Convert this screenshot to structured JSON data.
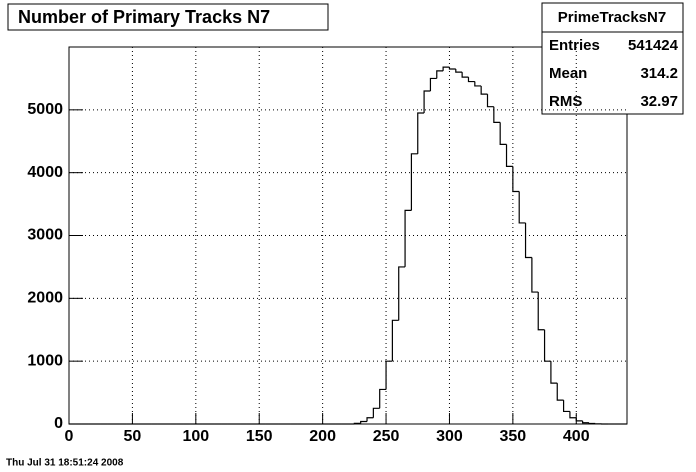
{
  "chart_data": {
    "type": "histogram",
    "title": "Number of Primary Tracks N7",
    "bins": [
      0,
      5,
      10,
      15,
      20,
      25,
      30,
      35,
      40,
      45,
      50,
      55,
      60,
      65,
      70,
      75,
      80,
      85,
      90,
      95,
      100,
      105,
      110,
      115,
      120,
      125,
      130,
      135,
      140,
      145,
      150,
      155,
      160,
      165,
      170,
      175,
      180,
      185,
      190,
      195,
      200,
      205,
      210,
      215,
      220,
      225,
      230,
      235,
      240,
      245,
      250,
      255,
      260,
      265,
      270,
      275,
      280,
      285,
      290,
      295,
      300,
      305,
      310,
      315,
      320,
      325,
      330,
      335,
      340,
      345,
      350,
      355,
      360,
      365,
      370,
      375,
      380,
      385,
      390,
      395,
      400,
      405,
      410,
      415,
      420,
      425,
      430,
      435,
      440
    ],
    "values": [
      0,
      0,
      0,
      0,
      0,
      0,
      0,
      0,
      0,
      0,
      0,
      0,
      0,
      0,
      0,
      0,
      0,
      0,
      0,
      0,
      0,
      0,
      0,
      0,
      0,
      0,
      0,
      0,
      0,
      0,
      0,
      0,
      0,
      0,
      0,
      0,
      0,
      0,
      0,
      0,
      0,
      0,
      0,
      0,
      0,
      10,
      40,
      100,
      250,
      550,
      1000,
      1650,
      2500,
      3400,
      4300,
      4950,
      5300,
      5500,
      5620,
      5680,
      5650,
      5600,
      5520,
      5450,
      5380,
      5250,
      5050,
      4800,
      4450,
      4100,
      3700,
      3200,
      2650,
      2100,
      1500,
      1000,
      650,
      380,
      200,
      100,
      50,
      20,
      8,
      2,
      0,
      0,
      0,
      0
    ],
    "color": "#000000",
    "xlim": [
      0,
      440
    ],
    "ylim": [
      0,
      6000
    ],
    "xticks": [
      0,
      50,
      100,
      150,
      200,
      250,
      300,
      350,
      400
    ],
    "yticks": [
      0,
      1000,
      2000,
      3000,
      4000,
      5000
    ],
    "grid": true,
    "stats": {
      "name": "PrimeTracksN7",
      "rows": [
        {
          "label": "Entries",
          "value": 541424
        },
        {
          "label": "Mean",
          "value": 314.2
        },
        {
          "label": "RMS",
          "value": 32.97
        }
      ]
    },
    "date": "Thu Jul 31 18:51:24 2008"
  }
}
